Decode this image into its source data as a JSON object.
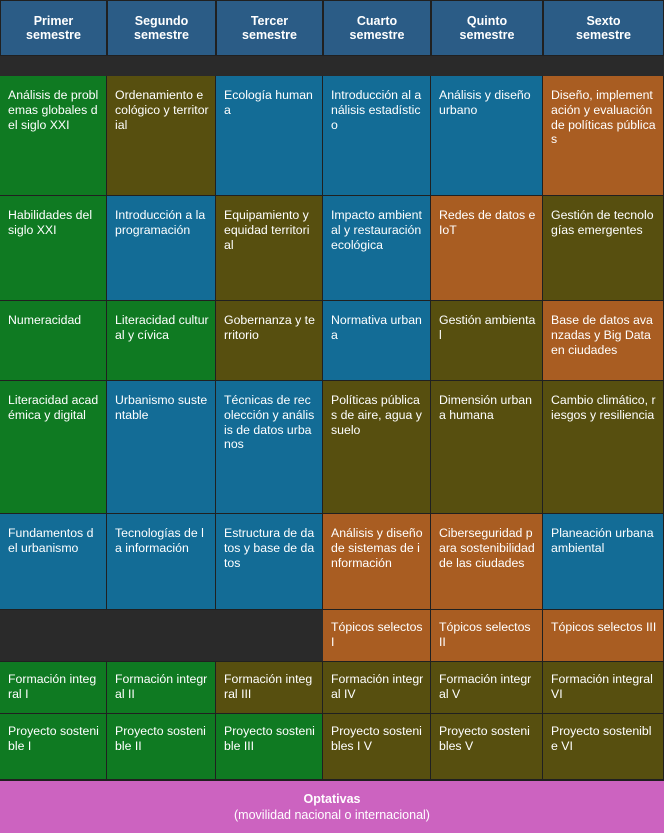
{
  "colors": {
    "green": "#0f7a22",
    "olive": "#574f0f",
    "blue": "#136c96",
    "orange": "#a95d22",
    "header": "#2b5c86",
    "pink": "#cc63c0"
  },
  "headers": [
    "Primer\nsemestre",
    "Segundo\nsemestre",
    "Tercer\nsemestre",
    "Cuarto\nsemestre",
    "Quinto\nsemestre",
    "Sexto\nsemestre"
  ],
  "courses": {
    "r1": [
      "Análisis de problemas globales del siglo XXI",
      "Ordenamiento ecológico y territorial",
      "Ecología humana",
      "Introducción al análisis estadístico",
      "Análisis y diseño urbano",
      "Diseño, implementación y evaluación de políticas públicas"
    ],
    "r2": [
      "Habilidades del siglo XXI",
      "Introducción a la programación",
      "Equipamiento y equidad territorial",
      "Impacto ambiental y restauración ecológica",
      "Redes de datos e IoT",
      "Gestión de tecnologías emergentes"
    ],
    "r3": [
      "Numeracidad",
      "Literacidad cultural y cívica",
      "Gobernanza y territorio",
      "Normativa urbana",
      "Gestión ambiental",
      "Base de datos avanzadas y Big Data en ciudades"
    ],
    "r4": [
      "Literacidad académica y digital",
      "Urbanismo sustentable",
      "Técnicas de recolección y análisis de datos urbanos",
      "Políticas públicas de aire, agua y suelo",
      "Dimensión urbana humana",
      "Cambio climático, riesgos y resiliencia"
    ],
    "r5": [
      "Fundamentos del urbanismo",
      "Tecnologías de la información",
      "Estructura de datos y base de datos",
      "Análisis y diseño de sistemas de información",
      "Ciberseguridad para sostenibilidad de las ciudades",
      "Planeación urbana ambiental"
    ],
    "r6": [
      "Tópicos selectos I",
      "Tópicos selectos II",
      "Tópicos selectos III"
    ],
    "r7": [
      "Formación integral I",
      "Formación integral II",
      "Formación integral III",
      "Formación integral IV",
      "Formación integral V",
      "Formación integral VI"
    ],
    "r8": [
      "Proyecto sostenible  I",
      "Proyecto sostenible II",
      "Proyecto sostenible   III",
      "Proyecto sostenibles   I V",
      "Proyecto sostenibles  V",
      "Proyecto sostenible  VI"
    ]
  },
  "optativas": {
    "title": "Optativas",
    "subtitle": "(movilidad nacional o internacional)"
  }
}
